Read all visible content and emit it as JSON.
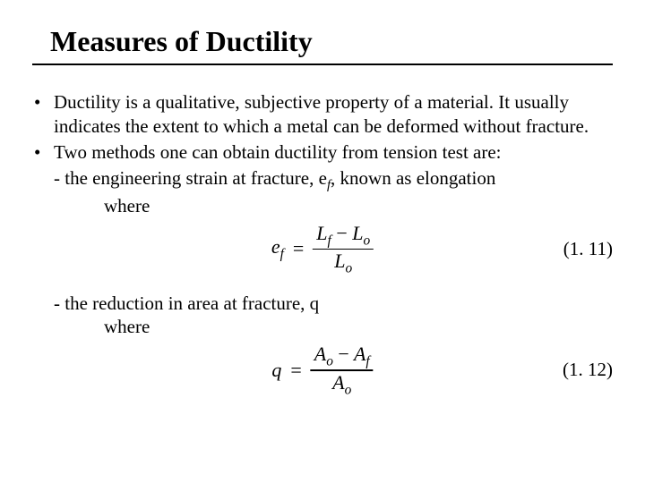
{
  "title": "Measures of Ductility",
  "bullets": {
    "b1": "Ductility is a qualitative, subjective property of a material.  It usually indicates the extent to which a metal can be deformed without fracture.",
    "b2": "Two methods one can obtain ductility from tension test are:",
    "b2_sub1_prefix": "- the engineering strain at fracture, e",
    "b2_sub1_sub": "f",
    "b2_sub1_suffix": ", known as elongation",
    "where": "where",
    "b2_sub2": "- the reduction in area at fracture, q"
  },
  "eq1": {
    "lhs_sym": "e",
    "lhs_sub": "f",
    "num_a": "L",
    "num_a_sub": "f",
    "minus": "−",
    "num_b": "L",
    "num_b_sub": "o",
    "den": "L",
    "den_sub": "o",
    "number": "(1. 11)"
  },
  "eq2": {
    "lhs_sym": "q",
    "num_a": "A",
    "num_a_sub": "o",
    "minus": "−",
    "num_b": "A",
    "num_b_sub": "f",
    "den": "A",
    "den_sub": "o",
    "number": "(1. 12)"
  },
  "style": {
    "text_color": "#000000",
    "background": "#ffffff",
    "title_fontsize": 32,
    "body_fontsize": 21,
    "eq_fontsize": 22,
    "font_family": "Times New Roman"
  }
}
